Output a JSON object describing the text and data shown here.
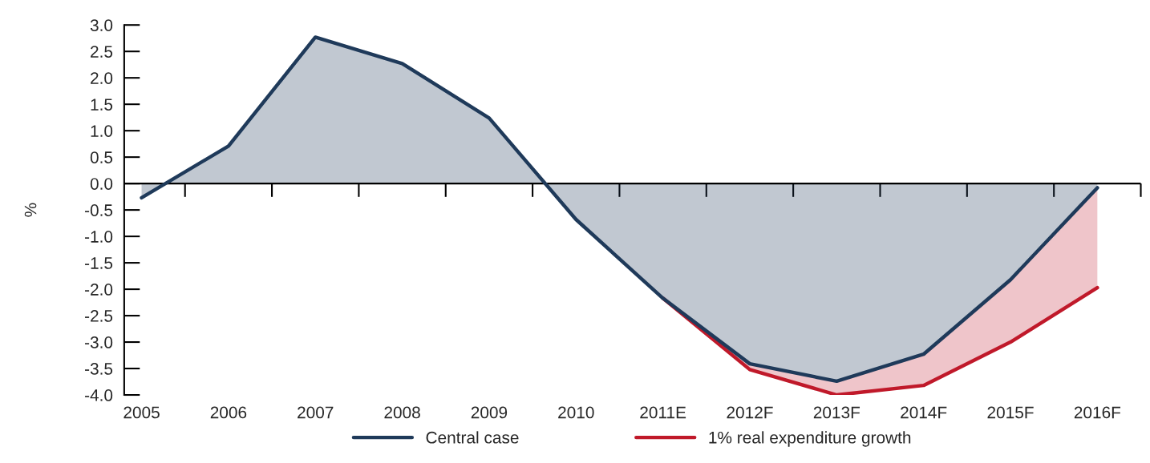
{
  "chart_data": {
    "type": "line",
    "ylabel": "%",
    "categories": [
      "2005",
      "2006",
      "2007",
      "2008",
      "2009",
      "2010",
      "2011E",
      "2012F",
      "2013F",
      "2014F",
      "2015F",
      "2016F"
    ],
    "series": [
      {
        "name": "Central case",
        "type": "area",
        "color": "#1f3a5a",
        "values": [
          -0.27,
          0.71,
          2.77,
          2.27,
          1.24,
          -0.68,
          -2.17,
          -3.41,
          -3.74,
          -3.23,
          -1.82,
          -0.08
        ]
      },
      {
        "name": "1% real expenditure growth",
        "color": "#c0192a",
        "values": [
          null,
          null,
          null,
          null,
          null,
          null,
          -2.17,
          -3.52,
          -4.0,
          -3.82,
          -3.0,
          -1.97
        ],
        "lower": [
          null,
          null,
          null,
          null,
          null,
          null,
          -2.17,
          -3.52,
          -4.0,
          -3.82,
          -3.0,
          -1.97
        ],
        "upper": [
          null,
          null,
          null,
          null,
          null,
          null,
          -2.17,
          -3.41,
          -3.74,
          -3.23,
          -1.82,
          -0.08
        ]
      }
    ],
    "ylim": [
      -4.0,
      3.0
    ],
    "yticks": [
      {
        "value": 3,
        "label": "3.0"
      },
      {
        "value": 2.5,
        "label": "2.5"
      },
      {
        "value": 2,
        "label": "2.0"
      },
      {
        "value": 1.5,
        "label": "1.5"
      },
      {
        "value": 1,
        "label": "1.0"
      },
      {
        "value": 0.5,
        "label": "0.5"
      },
      {
        "value": 0,
        "label": "0.0"
      },
      {
        "value": -0.5,
        "label": "-0.5"
      },
      {
        "value": -1,
        "label": "-1.0"
      },
      {
        "value": -1.5,
        "label": "-1.5"
      },
      {
        "value": -2,
        "label": "-2.0"
      },
      {
        "value": -2.5,
        "label": "-2.5"
      },
      {
        "value": -3,
        "label": "-3.0"
      },
      {
        "value": -3.5,
        "label": "-3.5"
      },
      {
        "value": -4,
        "label": "-4.0"
      }
    ],
    "ref_lines": [
      {
        "axis": "y",
        "value": 0,
        "label": null,
        "color": "#000000",
        "line_style": "solid"
      }
    ],
    "legend": "bottom",
    "grid": false,
    "marker": "none",
    "line_style": "solid"
  }
}
